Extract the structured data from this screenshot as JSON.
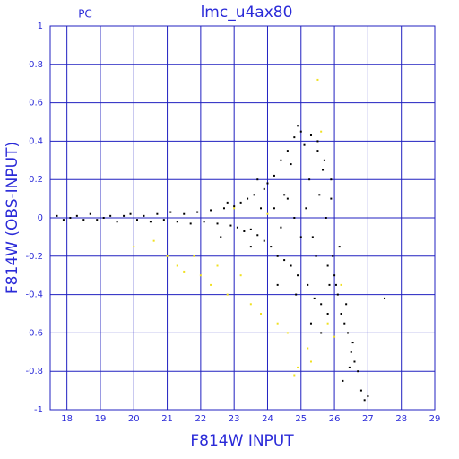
{
  "chart_data": {
    "type": "scatter",
    "title": "lmc_u4ax80",
    "annotation": "PC",
    "xlabel": "F814W INPUT",
    "ylabel": "F814W (OBS-INPUT)",
    "xlim": [
      17.5,
      29
    ],
    "xticks": [
      18,
      19,
      20,
      21,
      22,
      23,
      24,
      25,
      26,
      27,
      28,
      29
    ],
    "ylim": [
      -1,
      1
    ],
    "yticks": [
      -1,
      -0.8,
      -0.6,
      -0.4,
      -0.2,
      0,
      0.2,
      0.4,
      0.6,
      0.8,
      1
    ],
    "grid": true,
    "grid_color": "#2020c0",
    "text_color": "#2a2ad8",
    "series": [
      {
        "color": "#000000",
        "x": [
          17.7,
          17.9,
          18.1,
          18.3,
          18.5,
          18.7,
          18.9,
          19.1,
          19.3,
          19.5,
          19.7,
          19.9,
          20.1,
          20.3,
          20.5,
          20.7,
          20.9,
          21.1,
          21.3,
          21.5,
          21.7,
          21.9,
          22.1,
          22.3,
          22.5,
          22.7,
          22.9,
          23.0,
          23.1,
          23.2,
          23.3,
          23.4,
          23.5,
          23.6,
          23.7,
          23.8,
          23.9,
          22.6,
          22.8,
          23.5,
          23.9,
          23.7,
          24.0,
          24.1,
          24.2,
          24.3,
          24.4,
          24.5,
          24.6,
          24.7,
          24.8,
          24.9,
          25.0,
          24.2,
          24.4,
          24.6,
          24.8,
          25.0,
          24.3,
          24.7,
          24.9,
          24.5,
          24.85,
          25.1,
          25.2,
          25.3,
          25.4,
          25.5,
          25.6,
          25.7,
          25.8,
          25.9,
          26.0,
          25.15,
          25.35,
          25.55,
          25.75,
          25.95,
          25.25,
          25.45,
          25.65,
          25.85,
          25.3,
          25.6,
          25.9,
          25.5,
          25.8,
          26.05,
          26.1,
          26.2,
          26.3,
          26.4,
          26.5,
          26.6,
          26.7,
          26.8,
          26.15,
          26.35,
          26.55,
          26.25,
          26.45,
          26.9,
          27.0,
          27.5
        ],
        "y": [
          0.01,
          -0.01,
          0.0,
          0.01,
          -0.01,
          0.02,
          -0.01,
          0.0,
          0.01,
          -0.02,
          0.01,
          0.02,
          -0.01,
          0.01,
          -0.02,
          0.02,
          -0.01,
          0.03,
          -0.02,
          0.02,
          -0.03,
          0.03,
          -0.02,
          0.04,
          -0.03,
          0.05,
          -0.04,
          0.06,
          -0.05,
          0.08,
          -0.07,
          0.1,
          -0.06,
          0.12,
          -0.09,
          0.05,
          -0.12,
          -0.1,
          0.08,
          -0.15,
          0.15,
          0.2,
          0.18,
          -0.15,
          0.22,
          -0.2,
          0.3,
          -0.22,
          0.35,
          -0.25,
          0.42,
          -0.3,
          0.45,
          0.05,
          -0.05,
          0.1,
          0.0,
          -0.1,
          -0.35,
          0.28,
          0.48,
          0.12,
          -0.4,
          0.38,
          -0.35,
          0.43,
          -0.42,
          0.4,
          -0.45,
          0.3,
          -0.5,
          0.2,
          -0.3,
          0.05,
          -0.1,
          0.12,
          0.0,
          -0.2,
          0.2,
          -0.2,
          0.25,
          -0.35,
          -0.55,
          -0.6,
          0.1,
          0.35,
          -0.25,
          -0.35,
          -0.4,
          -0.5,
          -0.55,
          -0.6,
          -0.7,
          -0.75,
          -0.8,
          -0.9,
          -0.15,
          -0.45,
          -0.65,
          -0.85,
          -0.78,
          -0.95,
          -0.93,
          -0.42
        ]
      },
      {
        "color": "#f0e020",
        "x": [
          20.0,
          20.6,
          21.0,
          21.3,
          21.5,
          21.8,
          22.0,
          22.3,
          22.5,
          22.8,
          23.2,
          23.5,
          23.8,
          24.0,
          24.3,
          24.6,
          24.9,
          25.2,
          25.5,
          25.6,
          25.8,
          26.0,
          26.2,
          25.3,
          23.0,
          24.8
        ],
        "y": [
          -0.15,
          -0.12,
          -0.2,
          -0.25,
          -0.28,
          -0.2,
          -0.3,
          -0.35,
          -0.25,
          -0.4,
          -0.3,
          -0.45,
          -0.5,
          0.02,
          -0.55,
          -0.6,
          -0.78,
          -0.68,
          0.72,
          0.45,
          -0.55,
          -0.62,
          -0.35,
          -0.75,
          0.05,
          -0.82
        ]
      }
    ]
  }
}
